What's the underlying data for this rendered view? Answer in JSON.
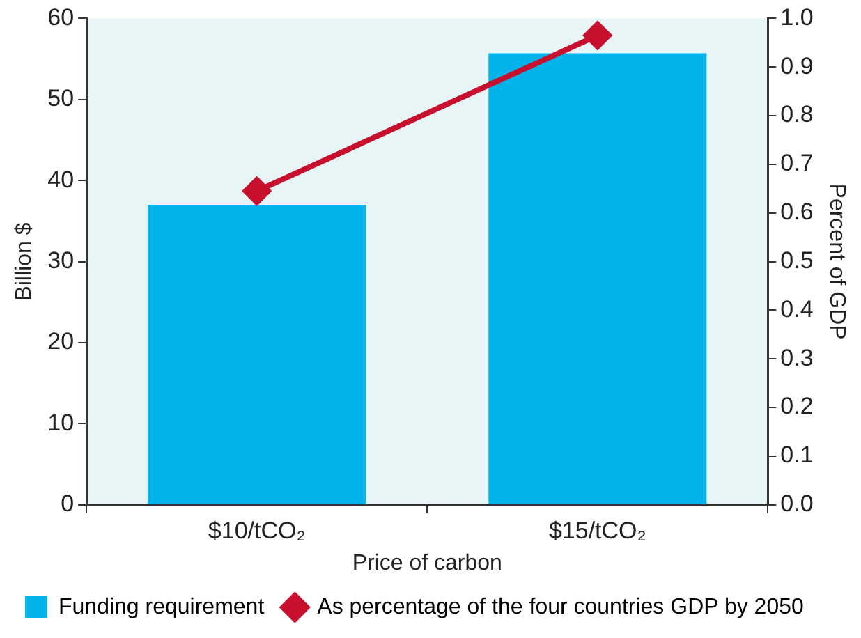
{
  "chart_data": {
    "type": "bar",
    "xlabel": "Price of carbon",
    "ylabel": "Billion $",
    "y2label": "Percent of GDP",
    "categories": [
      "$10/tCO₂",
      "$15/tCO₂"
    ],
    "series": [
      {
        "name": "Funding requirement",
        "color": "#00b4eb",
        "values": [
          37,
          55.7
        ]
      },
      {
        "name": "As percentage of the four countries GDP by 2050",
        "type": "line",
        "axis": "y2",
        "color": "#c8102e",
        "marker": "diamond",
        "values": [
          0.645,
          0.965
        ]
      }
    ],
    "ylim": [
      0,
      60
    ],
    "yticks": [
      0,
      10,
      20,
      30,
      40,
      50,
      60
    ],
    "y2lim": [
      0,
      1
    ],
    "y2ticks": [
      {
        "value": 0,
        "label": "0.0"
      },
      0.1,
      0.2,
      0.3,
      0.4,
      0.5,
      0.6,
      0.7,
      0.8,
      0.9,
      {
        "value": 1,
        "label": "1.0"
      }
    ],
    "grid": false,
    "legend": "bottom"
  }
}
